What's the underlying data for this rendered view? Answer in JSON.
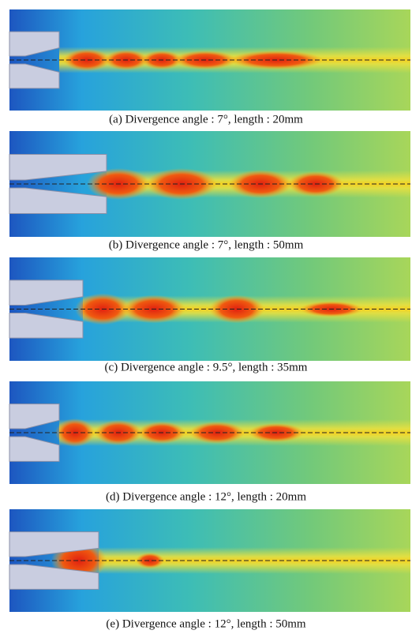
{
  "panels": [
    {
      "caption": "(a) Divergence angle : 7°, length : 20mm"
    },
    {
      "caption": "(b) Divergence angle : 7°, length : 50mm"
    },
    {
      "caption": "(c) Divergence angle : 9.5°, length : 35mm"
    },
    {
      "caption": "(d) Divergence angle : 12°, length : 20mm"
    },
    {
      "caption": "(e) Divergence angle : 12°, length : 50mm"
    }
  ]
}
